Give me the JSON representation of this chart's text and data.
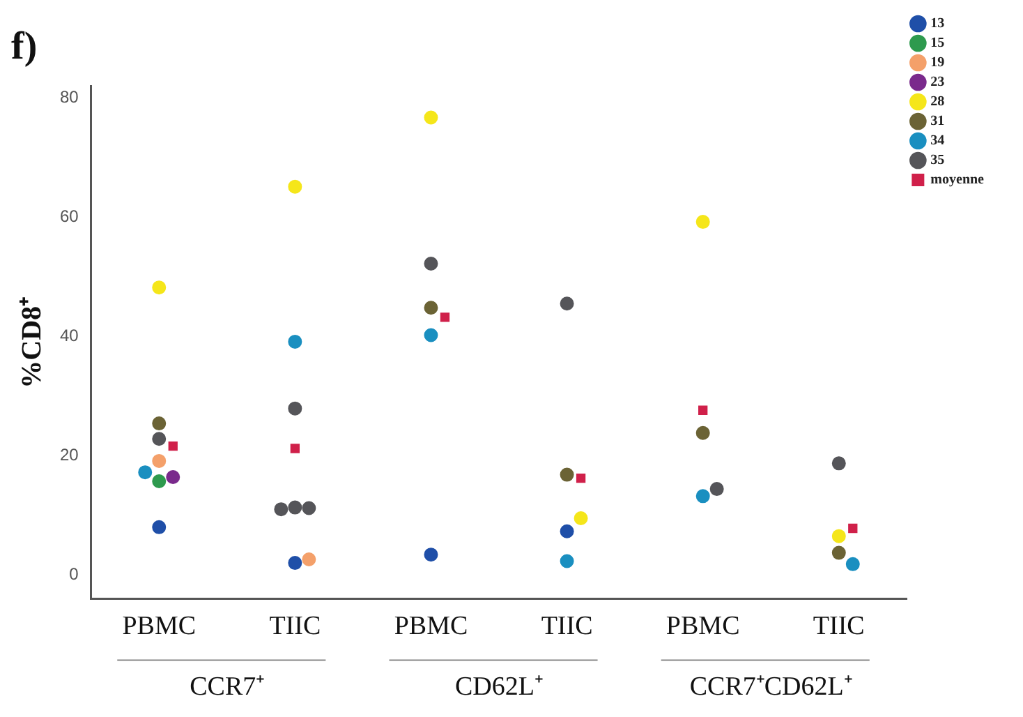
{
  "chart_data": {
    "type": "scatter",
    "title": "f)",
    "ylabel": "%CD8⁺",
    "categories": [
      "PBMC",
      "TIIC",
      "PBMC",
      "TIIC",
      "PBMC",
      "TIIC"
    ],
    "annotations": [
      "CCR7⁺",
      "CD62L⁺",
      "CCR7⁺CD62L⁺"
    ],
    "series": [
      {
        "name": "13",
        "color": "#1f4fa8",
        "values": [
          8,
          2,
          3.4,
          7.3,
          null,
          null
        ]
      },
      {
        "name": "15",
        "color": "#2e9a4e",
        "values": [
          15.7,
          null,
          null,
          null,
          null,
          null
        ]
      },
      {
        "name": "19",
        "color": "#f4a06a",
        "values": [
          19.1,
          2.6,
          null,
          null,
          null,
          null
        ]
      },
      {
        "name": "23",
        "color": "#7a2a8c",
        "values": [
          16.4,
          null,
          null,
          null,
          null,
          null
        ]
      },
      {
        "name": "28",
        "color": "#f5e61a",
        "values": [
          48.2,
          65.1,
          76.7,
          9.5,
          59.2,
          6.5
        ]
      },
      {
        "name": "31",
        "color": "#6b6335",
        "values": [
          25.4,
          null,
          44.8,
          16.8,
          23.8,
          3.7
        ]
      },
      {
        "name": "34",
        "color": "#1a8fc0",
        "values": [
          17.2,
          39.1,
          40.2,
          2.3,
          13.2,
          1.8
        ]
      },
      {
        "name": "35",
        "color": "#555559",
        "values": [
          22.8,
          27.9,
          52.2,
          45.5,
          14.4,
          18.7
        ]
      },
      {
        "color": "#555559",
        "values": [
          null,
          11.3,
          null,
          null,
          null,
          null
        ]
      },
      {
        "color": "#555559",
        "values": [
          null,
          11.2,
          null,
          null,
          null,
          null
        ]
      },
      {
        "color": "#555559",
        "values": [
          null,
          11.0,
          null,
          null,
          null,
          null
        ]
      },
      {
        "name": "moyenne",
        "color": "#d0204a",
        "marker": "square",
        "values": [
          21.6,
          21.2,
          43.2,
          16.2,
          27.6,
          7.8
        ]
      }
    ],
    "ylim": [
      -4,
      82
    ],
    "yticks": [
      0,
      20,
      40,
      60,
      80
    ],
    "grid": false,
    "legend": "top right",
    "marker": "circle"
  }
}
